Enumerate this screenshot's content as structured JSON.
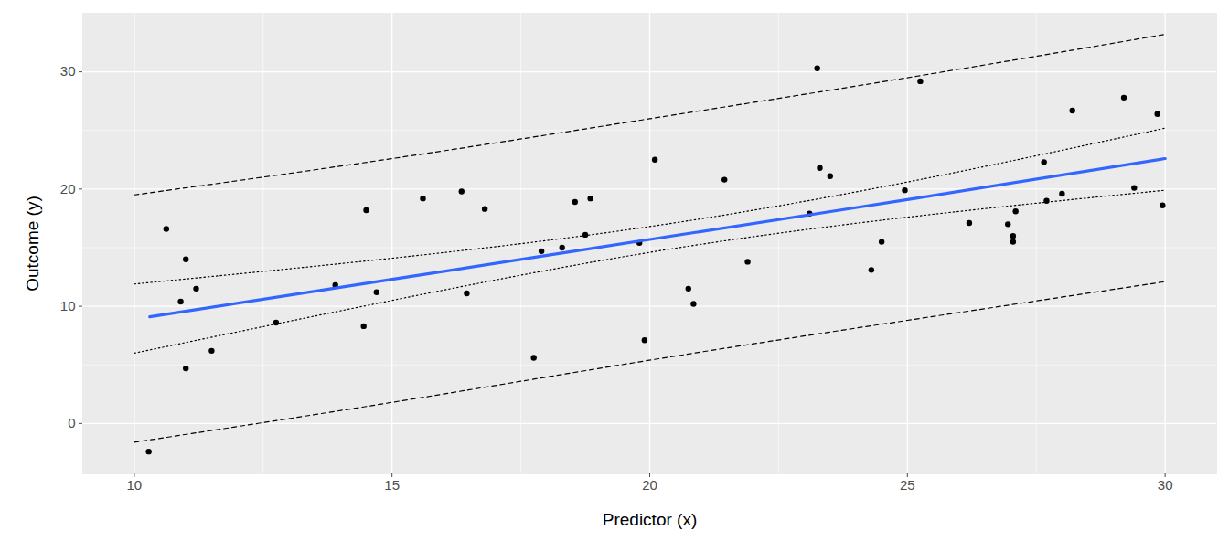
{
  "chart_data": {
    "type": "scatter",
    "x_label": "Predictor (x)",
    "y_label": "Outcome (y)",
    "xlim": [
      9.0,
      31.0
    ],
    "ylim": [
      -4.3,
      35.0
    ],
    "xticks": [
      10,
      15,
      20,
      25,
      30
    ],
    "yticks": [
      0,
      10,
      20,
      30
    ],
    "grid": true,
    "series": [
      {
        "type": "scatter",
        "marker": "circle",
        "color": "#000000",
        "x": [
          10.28,
          10.62,
          10.9,
          11.0,
          11.0,
          11.2,
          11.5,
          12.75,
          13.9,
          14.45,
          14.5,
          14.7,
          15.6,
          16.35,
          16.45,
          16.8,
          17.75,
          17.9,
          18.3,
          18.55,
          18.75,
          18.85,
          19.8,
          19.9,
          20.1,
          20.75,
          20.85,
          21.45,
          21.9,
          23.1,
          23.25,
          23.3,
          23.5,
          24.3,
          24.5,
          24.95,
          25.25,
          26.2,
          26.95,
          27.05,
          27.05,
          27.1,
          27.65,
          27.7,
          28.0,
          28.2,
          29.2,
          29.4,
          29.85,
          29.95
        ],
        "values": [
          -2.4,
          16.6,
          10.4,
          14.0,
          4.7,
          11.5,
          6.2,
          8.6,
          11.8,
          8.3,
          18.2,
          11.2,
          19.2,
          19.8,
          11.1,
          18.3,
          5.6,
          14.7,
          15.0,
          18.9,
          16.1,
          19.2,
          15.4,
          7.1,
          22.5,
          11.5,
          10.2,
          20.8,
          13.8,
          17.9,
          30.3,
          21.8,
          21.1,
          13.1,
          15.5,
          19.9,
          29.2,
          17.1,
          17.0,
          15.5,
          16.0,
          18.1,
          22.3,
          19.0,
          19.6,
          26.7,
          27.8,
          20.1,
          26.4,
          18.6
        ]
      },
      {
        "type": "line",
        "line_style": "solid",
        "color": "#3366ff",
        "x": [
          10.3,
          15,
          20,
          25,
          30
        ],
        "values": [
          9.1,
          12.3,
          15.7,
          19.1,
          22.6
        ]
      },
      {
        "type": "line",
        "line_style": "dotted",
        "color": "#000000",
        "x": [
          10,
          15,
          20,
          25,
          30
        ],
        "values": [
          11.9,
          14.1,
          16.8,
          20.6,
          25.2
        ]
      },
      {
        "type": "line",
        "line_style": "dotted",
        "color": "#000000",
        "x": [
          10,
          15,
          20,
          25,
          30
        ],
        "values": [
          6.0,
          10.5,
          14.6,
          17.6,
          19.9
        ]
      },
      {
        "type": "line",
        "line_style": "dashed",
        "color": "#000000",
        "x": [
          10,
          15,
          20,
          25,
          30
        ],
        "values": [
          19.5,
          22.6,
          26.0,
          29.5,
          33.2
        ]
      },
      {
        "type": "line",
        "line_style": "dashed",
        "color": "#000000",
        "x": [
          10,
          15,
          20,
          25,
          30
        ],
        "values": [
          -1.6,
          1.8,
          5.4,
          8.8,
          12.1
        ]
      }
    ]
  }
}
